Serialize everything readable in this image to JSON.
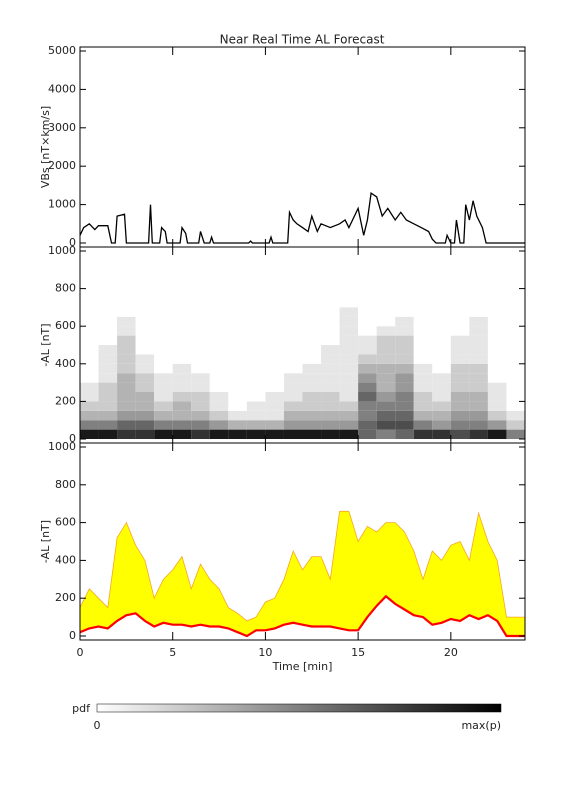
{
  "chart_data": [
    {
      "type": "line",
      "title": "Near Real Time AL Forecast",
      "ylabel": "VBs [nT×km/s]",
      "color": "#000000",
      "xlim": [
        0,
        24
      ],
      "xticks": [
        0,
        5,
        10,
        15,
        20
      ],
      "ylim": [
        0,
        5000
      ],
      "yticks": [
        0,
        1000,
        2000,
        3000,
        4000,
        5000
      ],
      "x": [
        0,
        0.2,
        0.5,
        0.8,
        1.0,
        1.5,
        1.7,
        1.9,
        2.0,
        2.4,
        2.5,
        3.7,
        3.8,
        3.9,
        4.3,
        4.4,
        4.6,
        4.7,
        5.4,
        5.5,
        5.7,
        5.8,
        6.4,
        6.5,
        6.7,
        7.0,
        7.1,
        7.2,
        9.1,
        9.2,
        9.3,
        10.2,
        10.3,
        10.4,
        11.2,
        11.3,
        11.5,
        11.7,
        12.0,
        12.3,
        12.5,
        12.8,
        13.0,
        13.5,
        14.0,
        14.3,
        14.5,
        14.8,
        15.0,
        15.3,
        15.5,
        15.7,
        16.0,
        16.3,
        16.6,
        17.0,
        17.3,
        17.6,
        18.0,
        18.4,
        18.8,
        19.0,
        19.2,
        19.7,
        19.8,
        20.0,
        20.2,
        20.3,
        20.5,
        20.7,
        20.8,
        21.0,
        21.2,
        21.4,
        21.7,
        21.9,
        24
      ],
      "values": [
        200,
        400,
        500,
        350,
        450,
        450,
        0,
        0,
        700,
        750,
        0,
        0,
        1000,
        0,
        0,
        400,
        300,
        0,
        0,
        400,
        250,
        0,
        0,
        300,
        0,
        0,
        150,
        0,
        0,
        50,
        0,
        0,
        150,
        0,
        0,
        800,
        600,
        500,
        400,
        300,
        700,
        300,
        500,
        400,
        500,
        600,
        400,
        700,
        900,
        200,
        600,
        1300,
        1200,
        700,
        900,
        600,
        800,
        600,
        500,
        400,
        300,
        100,
        0,
        0,
        200,
        0,
        0,
        600,
        0,
        0,
        1000,
        600,
        1100,
        700,
        400,
        0,
        0
      ]
    },
    {
      "type": "heatmap",
      "ylabel": "-AL [nT]",
      "xlim": [
        0,
        24
      ],
      "xticks": [
        0,
        5,
        10,
        15,
        20
      ],
      "ylim": [
        0,
        1000
      ],
      "yticks": [
        0,
        200,
        400,
        600,
        800,
        1000
      ],
      "x_bins": [
        0,
        1,
        2,
        3,
        4,
        5,
        6,
        7,
        8,
        9,
        10,
        11,
        12,
        13,
        14,
        15,
        16,
        17,
        18,
        19,
        20,
        21,
        22,
        23,
        24
      ],
      "y_bins": [
        0,
        50,
        100,
        150,
        200,
        250,
        300,
        350,
        400,
        450,
        500,
        550,
        600,
        650,
        700
      ],
      "z": [
        [
          0.9,
          0.9,
          0.8,
          0.8,
          0.9,
          0.9,
          0.8,
          0.9,
          0.9,
          0.9,
          0.9,
          0.9,
          0.9,
          0.9,
          0.9,
          0.6,
          0.5,
          0.6,
          0.8,
          0.8,
          0.7,
          0.8,
          0.9,
          0.5
        ],
        [
          0.5,
          0.5,
          0.6,
          0.6,
          0.5,
          0.5,
          0.5,
          0.4,
          0.3,
          0.3,
          0.3,
          0.4,
          0.4,
          0.4,
          0.4,
          0.6,
          0.7,
          0.7,
          0.5,
          0.4,
          0.5,
          0.5,
          0.4,
          0.2
        ],
        [
          0.3,
          0.3,
          0.4,
          0.4,
          0.3,
          0.3,
          0.3,
          0.2,
          0.1,
          0.1,
          0.1,
          0.3,
          0.3,
          0.3,
          0.3,
          0.5,
          0.6,
          0.6,
          0.3,
          0.3,
          0.4,
          0.4,
          0.2,
          0.1
        ],
        [
          0.2,
          0.2,
          0.3,
          0.3,
          0.2,
          0.3,
          0.2,
          0.1,
          0,
          0.1,
          0.1,
          0.2,
          0.2,
          0.2,
          0.2,
          0.5,
          0.5,
          0.5,
          0.2,
          0.2,
          0.3,
          0.3,
          0.1,
          0
        ],
        [
          0.1,
          0.2,
          0.3,
          0.3,
          0.1,
          0.2,
          0.2,
          0.1,
          0,
          0,
          0.1,
          0.1,
          0.2,
          0.2,
          0.1,
          0.6,
          0.4,
          0.5,
          0.2,
          0.1,
          0.3,
          0.3,
          0.1,
          0
        ],
        [
          0.1,
          0.2,
          0.3,
          0.2,
          0.1,
          0.1,
          0.1,
          0,
          0,
          0,
          0,
          0.1,
          0.1,
          0.1,
          0.1,
          0.5,
          0.3,
          0.4,
          0.1,
          0.1,
          0.2,
          0.2,
          0.1,
          0
        ],
        [
          0,
          0.1,
          0.3,
          0.2,
          0.1,
          0.1,
          0.1,
          0,
          0,
          0,
          0,
          0.1,
          0.1,
          0.1,
          0.1,
          0.4,
          0.3,
          0.4,
          0.1,
          0.1,
          0.2,
          0.2,
          0,
          0
        ],
        [
          0,
          0.1,
          0.2,
          0.1,
          0,
          0.1,
          0,
          0,
          0,
          0,
          0,
          0,
          0.1,
          0.1,
          0.1,
          0.3,
          0.3,
          0.3,
          0.1,
          0,
          0.2,
          0.2,
          0,
          0
        ],
        [
          0,
          0.1,
          0.2,
          0.1,
          0,
          0,
          0,
          0,
          0,
          0,
          0,
          0,
          0,
          0.1,
          0.1,
          0.2,
          0.2,
          0.2,
          0,
          0,
          0.1,
          0.1,
          0,
          0
        ],
        [
          0,
          0.1,
          0.2,
          0,
          0,
          0,
          0,
          0,
          0,
          0,
          0,
          0,
          0,
          0.1,
          0.1,
          0.1,
          0.2,
          0.2,
          0,
          0,
          0.1,
          0.1,
          0,
          0
        ],
        [
          0,
          0,
          0.2,
          0,
          0,
          0,
          0,
          0,
          0,
          0,
          0,
          0,
          0,
          0,
          0.1,
          0.1,
          0.2,
          0.2,
          0,
          0,
          0.1,
          0.1,
          0,
          0
        ],
        [
          0,
          0,
          0.1,
          0,
          0,
          0,
          0,
          0,
          0,
          0,
          0,
          0,
          0,
          0,
          0.1,
          0,
          0.1,
          0.1,
          0,
          0,
          0,
          0.1,
          0,
          0
        ],
        [
          0,
          0,
          0.1,
          0,
          0,
          0,
          0,
          0,
          0,
          0,
          0,
          0,
          0,
          0,
          0.1,
          0,
          0,
          0.1,
          0,
          0,
          0,
          0.1,
          0,
          0
        ],
        [
          0,
          0,
          0,
          0,
          0,
          0,
          0,
          0,
          0,
          0,
          0,
          0,
          0,
          0,
          0.1,
          0,
          0,
          0,
          0,
          0,
          0,
          0,
          0,
          0
        ]
      ]
    },
    {
      "type": "band",
      "ylabel": "-AL [nT]",
      "xlabel": "Time [min]",
      "xlim": [
        0,
        24
      ],
      "xticks": [
        0,
        5,
        10,
        15,
        20
      ],
      "ylim": [
        0,
        1000
      ],
      "yticks": [
        0,
        200,
        400,
        600,
        800,
        1000
      ],
      "band_color": "#ffff00",
      "band_edge_color": "#f5a623",
      "median_color": "#ff0000",
      "x": [
        0,
        0.5,
        1,
        1.5,
        2,
        2.5,
        3,
        3.5,
        4,
        4.5,
        5,
        5.5,
        6,
        6.5,
        7,
        7.5,
        8,
        8.5,
        9,
        9.5,
        10,
        10.5,
        11,
        11.5,
        12,
        12.5,
        13,
        13.5,
        14,
        14.5,
        15,
        15.5,
        16,
        16.5,
        17,
        17.5,
        18,
        18.5,
        19,
        19.5,
        20,
        20.5,
        21,
        21.5,
        22,
        22.5,
        23,
        23.5,
        24
      ],
      "median": [
        20,
        40,
        50,
        40,
        80,
        110,
        120,
        80,
        50,
        70,
        60,
        60,
        50,
        60,
        50,
        50,
        40,
        20,
        0,
        30,
        30,
        40,
        60,
        70,
        60,
        50,
        50,
        50,
        40,
        30,
        30,
        100,
        160,
        210,
        170,
        140,
        110,
        100,
        60,
        70,
        90,
        80,
        110,
        90,
        110,
        80,
        0,
        0,
        0
      ],
      "upper": [
        150,
        250,
        200,
        150,
        520,
        600,
        480,
        400,
        200,
        300,
        350,
        420,
        250,
        380,
        300,
        250,
        150,
        120,
        80,
        100,
        180,
        200,
        300,
        450,
        350,
        420,
        420,
        300,
        660,
        660,
        500,
        580,
        550,
        600,
        600,
        550,
        450,
        300,
        450,
        400,
        480,
        500,
        400,
        650,
        500,
        400,
        100,
        100,
        100
      ]
    }
  ],
  "colorbar": {
    "label": "pdf",
    "min_label": "0",
    "max_label": "max(p)"
  }
}
